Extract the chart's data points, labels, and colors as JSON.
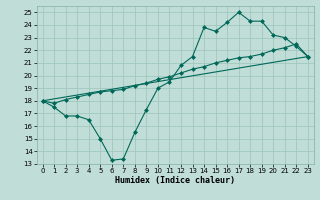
{
  "xlabel": "Humidex (Indice chaleur)",
  "bg_color": "#c0ddd8",
  "grid_color": "#a0c8c0",
  "line_color": "#006858",
  "xlim": [
    -0.5,
    23.5
  ],
  "ylim": [
    13,
    25.5
  ],
  "yticks": [
    13,
    14,
    15,
    16,
    17,
    18,
    19,
    20,
    21,
    22,
    23,
    24,
    25
  ],
  "xticks": [
    0,
    1,
    2,
    3,
    4,
    5,
    6,
    7,
    8,
    9,
    10,
    11,
    12,
    13,
    14,
    15,
    16,
    17,
    18,
    19,
    20,
    21,
    22,
    23
  ],
  "line1_x": [
    0,
    1,
    2,
    3,
    4,
    5,
    6,
    7,
    8,
    9,
    10,
    11,
    12,
    13,
    14,
    15,
    16,
    17,
    18,
    19,
    20,
    21,
    22,
    23
  ],
  "line1_y": [
    18.0,
    17.5,
    16.8,
    16.8,
    16.5,
    15.0,
    13.3,
    13.4,
    15.5,
    17.3,
    19.0,
    19.5,
    20.8,
    21.5,
    23.8,
    23.5,
    24.2,
    25.0,
    24.3,
    24.3,
    23.2,
    23.0,
    22.3,
    21.5
  ],
  "line2_x": [
    0,
    1,
    2,
    3,
    4,
    5,
    6,
    7,
    8,
    9,
    10,
    11,
    12,
    13,
    14,
    15,
    16,
    17,
    18,
    19,
    20,
    21,
    22,
    23
  ],
  "line2_y": [
    18.0,
    17.8,
    18.1,
    18.3,
    18.5,
    18.7,
    18.8,
    18.9,
    19.2,
    19.4,
    19.7,
    19.9,
    20.2,
    20.5,
    20.7,
    21.0,
    21.2,
    21.4,
    21.5,
    21.7,
    22.0,
    22.2,
    22.5,
    21.5
  ],
  "line3_x": [
    0,
    23
  ],
  "line3_y": [
    18.0,
    21.5
  ]
}
